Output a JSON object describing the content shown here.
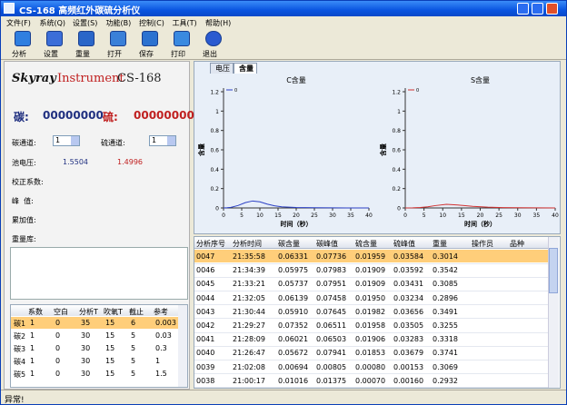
{
  "window": {
    "title": "CS-168 高频红外碳硫分析仪"
  },
  "menu": [
    "文件(F)",
    "系统(Q)",
    "设置(S)",
    "功能(B)",
    "控制(C)",
    "工具(T)",
    "帮助(H)"
  ],
  "toolbar": [
    "分析",
    "设置",
    "重量",
    "打开",
    "保存",
    "打印",
    "退出"
  ],
  "brand": {
    "skyray": "Skyray",
    "instrument": "Instrument",
    "model": "CS-168"
  },
  "readout": {
    "carbon_label": "碳:",
    "carbon_value": "00000000",
    "sulfur_label": "硫:",
    "sulfur_value": "00000000"
  },
  "channels": {
    "carbon_label": "碳通道:",
    "carbon_value": "1",
    "sulfur_label": "硫通道:",
    "sulfur_value": "1"
  },
  "cell_voltage": {
    "label": "池电压:",
    "carbon": "1.5504",
    "sulfur": "1.4996"
  },
  "fields": [
    "校正系数:",
    "峰  值:",
    "累加值:",
    "重量库:"
  ],
  "param_table": {
    "headers": [
      "系数",
      "空白",
      "分析T",
      "吹氧T",
      "截止",
      "参考"
    ],
    "selected": 0,
    "rows": [
      {
        "label": "碳1",
        "cells": [
          "1",
          "0",
          "35",
          "15",
          "6",
          "0.003"
        ]
      },
      {
        "label": "碳2",
        "cells": [
          "1",
          "0",
          "30",
          "15",
          "5",
          "0.03"
        ]
      },
      {
        "label": "碳3",
        "cells": [
          "1",
          "0",
          "30",
          "15",
          "5",
          "0.3"
        ]
      },
      {
        "label": "碳4",
        "cells": [
          "1",
          "0",
          "30",
          "15",
          "5",
          "1"
        ]
      },
      {
        "label": "碳5",
        "cells": [
          "1",
          "0",
          "30",
          "15",
          "5",
          "1.5"
        ]
      }
    ]
  },
  "tabs": [
    "电压",
    "含量"
  ],
  "active_tab": 1,
  "charts": [
    {
      "title": "C含量",
      "ylabel": "含量",
      "xlabel": "时间（秒）",
      "legend": "0",
      "color": "#2a3fc4",
      "x": [
        0,
        1,
        2,
        4,
        6,
        8,
        10,
        12,
        14,
        16,
        20,
        25,
        30,
        35,
        40
      ],
      "y": [
        0,
        0.002,
        0.006,
        0.025,
        0.055,
        0.072,
        0.063,
        0.04,
        0.022,
        0.012,
        0.005,
        0.002,
        0.001,
        0,
        0
      ],
      "xlim": [
        0,
        40
      ],
      "ylim": [
        0,
        1.2
      ],
      "xticks": [
        0,
        5,
        10,
        15,
        20,
        25,
        30,
        35,
        40
      ],
      "yticks": [
        0,
        0.2,
        0.4,
        0.6,
        0.8,
        1,
        1.2
      ]
    },
    {
      "title": "S含量",
      "ylabel": "含量",
      "xlabel": "时间（秒）",
      "legend": "0",
      "color": "#d03030",
      "x": [
        0,
        2,
        4,
        6,
        8,
        11,
        14,
        18,
        22,
        26,
        30,
        35,
        40
      ],
      "y": [
        0,
        0.001,
        0.005,
        0.012,
        0.024,
        0.038,
        0.031,
        0.016,
        0.008,
        0.004,
        0.002,
        0.001,
        0
      ],
      "xlim": [
        0,
        40
      ],
      "ylim": [
        0,
        1.2
      ],
      "xticks": [
        0,
        5,
        10,
        15,
        20,
        25,
        30,
        35,
        40
      ],
      "yticks": [
        0,
        0.2,
        0.4,
        0.6,
        0.8,
        1,
        1.2
      ]
    }
  ],
  "results_table": {
    "headers": [
      "分析序号",
      "分析时间",
      "碳含量",
      "碳峰值",
      "硫含量",
      "硫峰值",
      "重量",
      "操作员",
      "品种"
    ],
    "selected": 0,
    "rows": [
      [
        "0047",
        "21:35:58",
        "0.06331",
        "0.07736",
        "0.01959",
        "0.03584",
        "0.3014"
      ],
      [
        "0046",
        "21:34:39",
        "0.05975",
        "0.07983",
        "0.01909",
        "0.03592",
        "0.3542"
      ],
      [
        "0045",
        "21:33:21",
        "0.05737",
        "0.07951",
        "0.01909",
        "0.03431",
        "0.3085"
      ],
      [
        "0044",
        "21:32:05",
        "0.06139",
        "0.07458",
        "0.01950",
        "0.03234",
        "0.2896"
      ],
      [
        "0043",
        "21:30:44",
        "0.05910",
        "0.07645",
        "0.01982",
        "0.03656",
        "0.3491"
      ],
      [
        "0042",
        "21:29:27",
        "0.07352",
        "0.06511",
        "0.01958",
        "0.03505",
        "0.3255"
      ],
      [
        "0041",
        "21:28:09",
        "0.06021",
        "0.06503",
        "0.01906",
        "0.03283",
        "0.3318"
      ],
      [
        "0040",
        "21:26:47",
        "0.05672",
        "0.07941",
        "0.01853",
        "0.03679",
        "0.3741"
      ],
      [
        "0039",
        "21:02:08",
        "0.00694",
        "0.00805",
        "0.00080",
        "0.00153",
        "0.3069"
      ],
      [
        "0038",
        "21:00:17",
        "0.01016",
        "0.01375",
        "0.00070",
        "0.00160",
        "0.2932"
      ]
    ]
  },
  "status": "异常!"
}
